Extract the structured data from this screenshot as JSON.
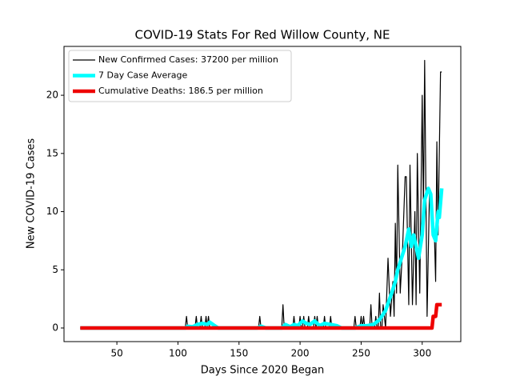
{
  "chart_data": {
    "type": "line",
    "title": "COVID-19 Stats For Red Willow County, NE",
    "x_label": "Days Since 2020 Began",
    "y_label": "New COVID-19 Cases",
    "xlim": [
      6.7,
      331.6
    ],
    "ylim": [
      -1.17,
      24.2
    ],
    "xticks": [
      50,
      100,
      150,
      200,
      250,
      300
    ],
    "yticks": [
      0,
      5,
      10,
      15,
      20
    ],
    "legend": "upper left",
    "series": [
      {
        "name": "New Confirmed Cases: 37200 per million",
        "color": "#000000",
        "width": 1.2,
        "x": [
          20,
          106,
          107,
          108,
          114,
          115,
          116,
          118,
          119,
          120,
          122,
          123,
          124,
          125,
          126,
          166,
          167,
          168,
          185,
          186,
          187,
          194,
          195,
          196,
          199,
          200,
          201,
          202,
          203,
          204,
          206,
          207,
          208,
          211,
          212,
          213,
          214,
          215,
          219,
          220,
          221,
          224,
          225,
          226,
          244,
          245,
          246,
          249,
          250,
          251,
          252,
          253,
          257,
          258,
          259,
          261,
          262,
          263,
          264,
          265,
          266,
          267,
          268,
          270,
          272,
          274,
          276,
          277,
          278,
          279,
          280,
          282,
          284,
          286,
          287,
          289,
          290,
          292,
          294,
          295,
          296,
          298,
          300,
          301,
          302,
          304,
          306,
          308,
          310,
          311,
          312,
          313,
          315,
          316
        ],
        "values": [
          0,
          0,
          1,
          0,
          0,
          1,
          0,
          0,
          1,
          0,
          0,
          1,
          0,
          1,
          0,
          0,
          1,
          0,
          0,
          2,
          0,
          0,
          1,
          0,
          0,
          1,
          0,
          0,
          1,
          0,
          0,
          1,
          0,
          0,
          1,
          0,
          1,
          0,
          0,
          1,
          0,
          0,
          1,
          0,
          0,
          1,
          0,
          0,
          1,
          0,
          1,
          0,
          0,
          2,
          0,
          0,
          1,
          0,
          0,
          3,
          0,
          0,
          2,
          0,
          6,
          1,
          4,
          1,
          9,
          3,
          14,
          3,
          7,
          13,
          13,
          2,
          14,
          2,
          10,
          2,
          15,
          3,
          20,
          10,
          23,
          1,
          12,
          11,
          8,
          4,
          16,
          8,
          22,
          22
        ]
      },
      {
        "name": "7 Day Case Average",
        "color": "#00ffff",
        "width": 4.5,
        "x": [
          20,
          106,
          108,
          112,
          116,
          120,
          124,
          126,
          130,
          133,
          165,
          168,
          172,
          185,
          188,
          192,
          195,
          198,
          202,
          205,
          208,
          212,
          216,
          220,
          225,
          230,
          234,
          245,
          250,
          255,
          260,
          265,
          270,
          275,
          278,
          280,
          283,
          286,
          289,
          291,
          293,
          295,
          297,
          300,
          302,
          305,
          307,
          309,
          311,
          313,
          314,
          316
        ],
        "values": [
          0,
          0,
          0.15,
          0.1,
          0.3,
          0.4,
          0.3,
          0.5,
          0.2,
          0,
          0,
          0.15,
          0,
          0,
          0.3,
          0.1,
          0.3,
          0.2,
          0.6,
          0.4,
          0.3,
          0.6,
          0.2,
          0.4,
          0.3,
          0.2,
          0,
          0,
          0.2,
          0.2,
          0.3,
          0.7,
          1.5,
          3,
          4,
          5,
          6,
          7,
          8.5,
          7,
          8,
          7,
          6,
          8,
          11,
          12,
          11.5,
          8,
          7.5,
          10,
          9.5,
          12
        ]
      },
      {
        "name": "Cumulative Deaths: 186.5 per million",
        "color": "#ee0000",
        "width": 4.5,
        "x": [
          20,
          308,
          309,
          311,
          312,
          316
        ],
        "values": [
          0,
          0,
          1,
          1,
          2,
          2
        ]
      }
    ]
  }
}
